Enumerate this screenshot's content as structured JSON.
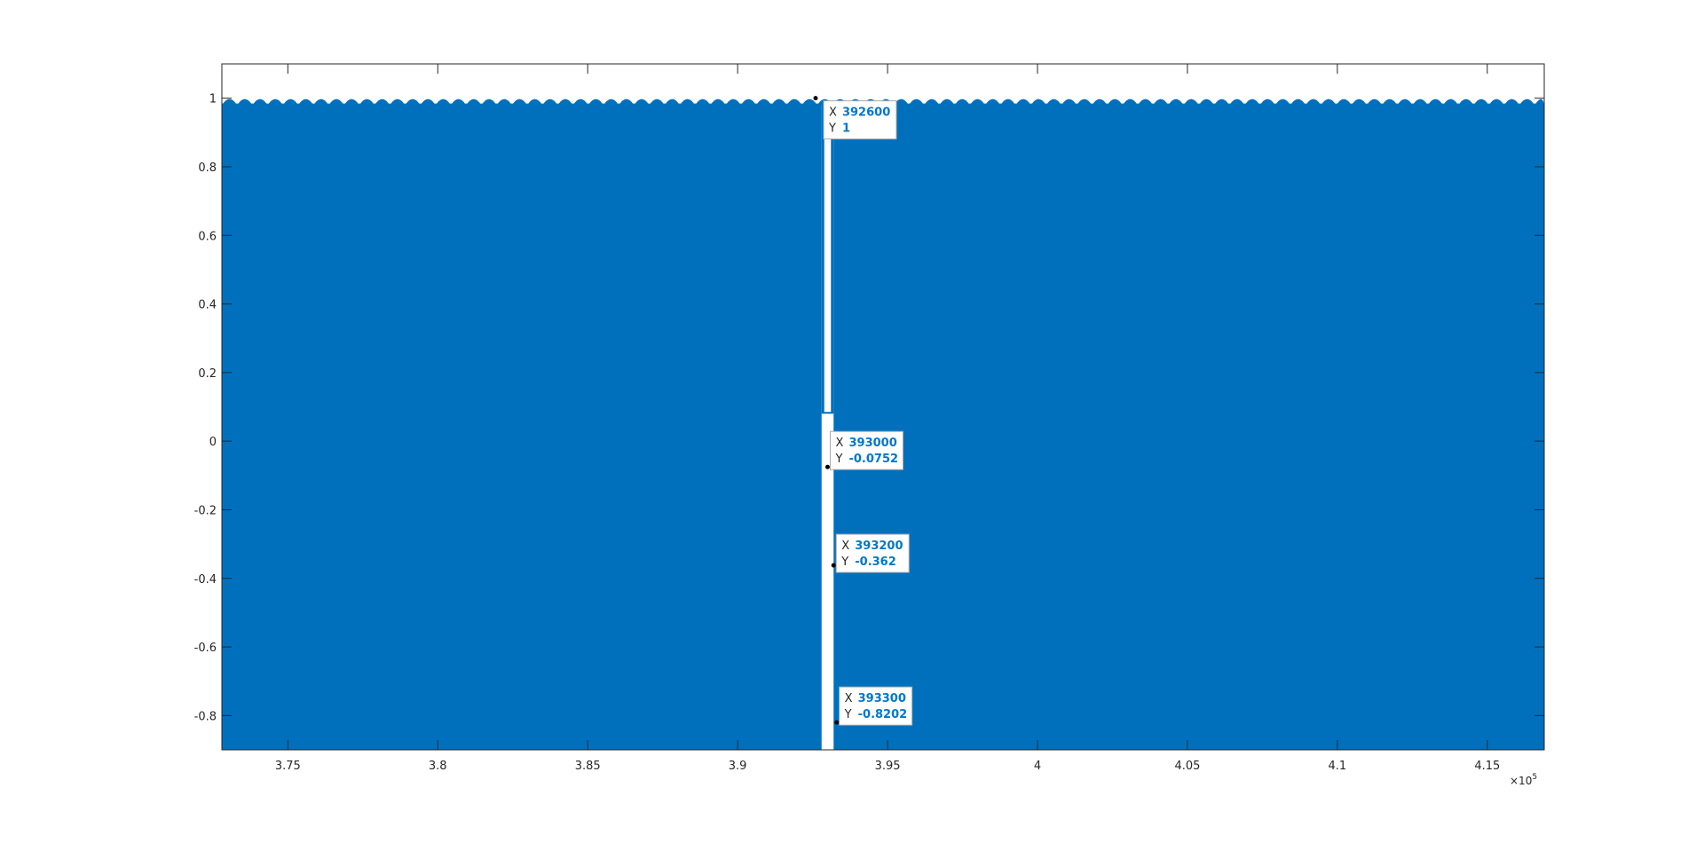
{
  "chart_data": {
    "type": "area",
    "title": "",
    "xlabel": "",
    "ylabel": "",
    "xlim": [
      372800,
      416900
    ],
    "ylim": [
      -0.9,
      1.1
    ],
    "x_exponent_label": "×10",
    "x_exponent_power": "5",
    "x_ticks": [
      375000,
      380000,
      385000,
      390000,
      395000,
      400000,
      405000,
      410000,
      415000
    ],
    "x_tick_labels": [
      "3.75",
      "3.8",
      "3.85",
      "3.9",
      "3.95",
      "4",
      "4.05",
      "4.1",
      "4.15"
    ],
    "y_ticks": [
      -0.8,
      -0.6,
      -0.4,
      -0.2,
      0,
      0.2,
      0.4,
      0.6,
      0.8,
      1
    ],
    "y_tick_labels": [
      "-0.8",
      "-0.6",
      "-0.4",
      "-0.2",
      "0",
      "0.2",
      "0.4",
      "0.6",
      "0.8",
      "1"
    ],
    "series_color": "#0070bd",
    "signal_extent": {
      "x_start": 372800,
      "x_end": 416900,
      "ymin": -0.9,
      "ymax": 1.0
    },
    "gap": {
      "x_start": 392800,
      "x_end": 393200,
      "upper_ymin": 0.08,
      "lower_ymax": -0.0752
    },
    "datatips": [
      {
        "x_key": "X",
        "x_value": "392600",
        "y_key": "Y",
        "y_value": "1",
        "x": 392600,
        "y": 1
      },
      {
        "x_key": "X",
        "x_value": "393000",
        "y_key": "Y",
        "y_value": "-0.0752",
        "x": 393000,
        "y": -0.0752
      },
      {
        "x_key": "X",
        "x_value": "393200",
        "y_key": "Y",
        "y_value": "-0.362",
        "x": 393200,
        "y": -0.362
      },
      {
        "x_key": "X",
        "x_value": "393300",
        "y_key": "Y",
        "y_value": "-0.8202",
        "x": 393300,
        "y": -0.8202
      }
    ]
  }
}
